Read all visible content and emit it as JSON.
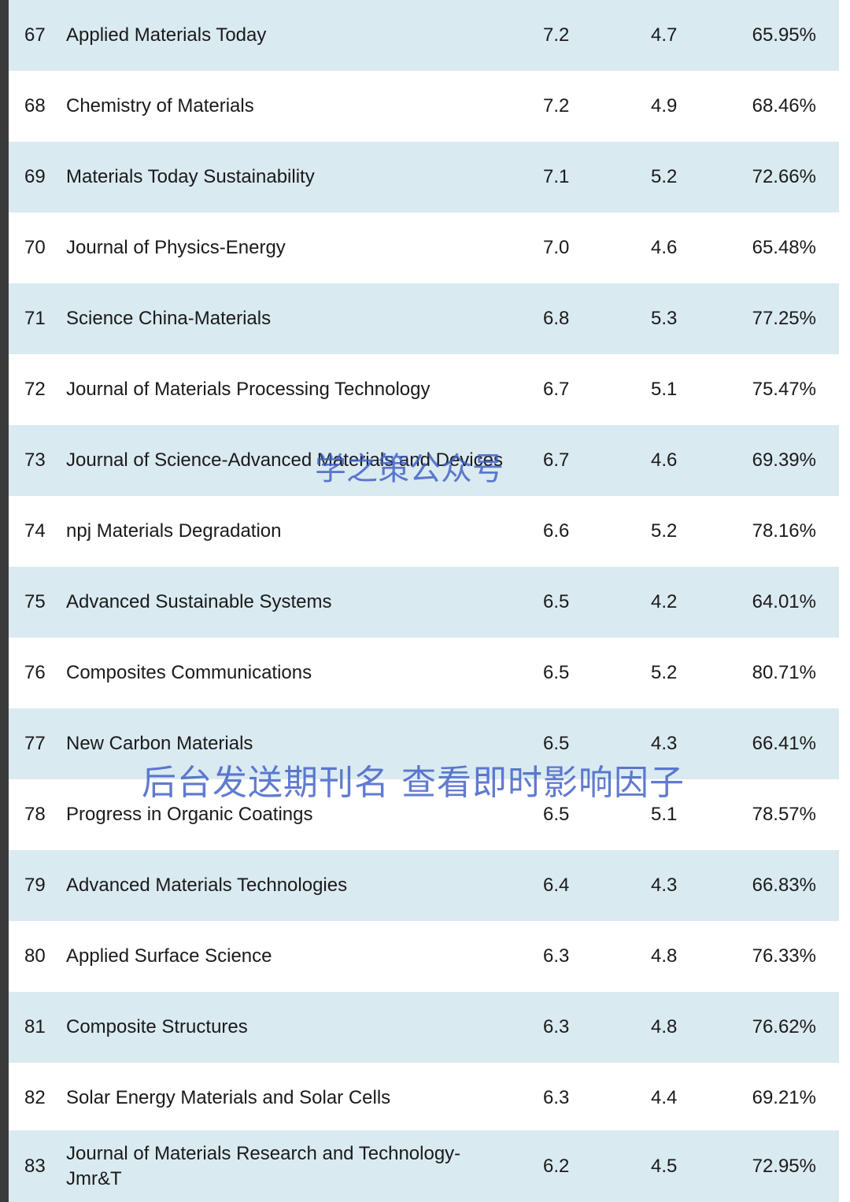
{
  "table": {
    "rows": [
      {
        "rank": "67",
        "title": "Applied Materials Today",
        "jif": "7.2",
        "cs": "4.7",
        "pct": "65.95%"
      },
      {
        "rank": "68",
        "title": "Chemistry of Materials",
        "jif": "7.2",
        "cs": "4.9",
        "pct": "68.46%"
      },
      {
        "rank": "69",
        "title": "Materials Today Sustainability",
        "jif": "7.1",
        "cs": "5.2",
        "pct": "72.66%"
      },
      {
        "rank": "70",
        "title": "Journal of Physics-Energy",
        "jif": "7.0",
        "cs": "4.6",
        "pct": "65.48%"
      },
      {
        "rank": "71",
        "title": "Science China-Materials",
        "jif": "6.8",
        "cs": "5.3",
        "pct": "77.25%"
      },
      {
        "rank": "72",
        "title": "Journal of Materials Processing Technology",
        "jif": "6.7",
        "cs": "5.1",
        "pct": "75.47%"
      },
      {
        "rank": "73",
        "title": "Journal of Science-Advanced Materials and Devices",
        "jif": "6.7",
        "cs": "4.6",
        "pct": "69.39%"
      },
      {
        "rank": "74",
        "title": "npj Materials Degradation",
        "jif": "6.6",
        "cs": "5.2",
        "pct": "78.16%"
      },
      {
        "rank": "75",
        "title": "Advanced Sustainable Systems",
        "jif": "6.5",
        "cs": "4.2",
        "pct": "64.01%"
      },
      {
        "rank": "76",
        "title": "Composites Communications",
        "jif": "6.5",
        "cs": "5.2",
        "pct": "80.71%"
      },
      {
        "rank": "77",
        "title": "New Carbon Materials",
        "jif": "6.5",
        "cs": "4.3",
        "pct": "66.41%"
      },
      {
        "rank": "78",
        "title": "Progress in Organic Coatings",
        "jif": "6.5",
        "cs": "5.1",
        "pct": "78.57%"
      },
      {
        "rank": "79",
        "title": "Advanced Materials Technologies",
        "jif": "6.4",
        "cs": "4.3",
        "pct": "66.83%"
      },
      {
        "rank": "80",
        "title": "Applied Surface Science",
        "jif": "6.3",
        "cs": "4.8",
        "pct": "76.33%"
      },
      {
        "rank": "81",
        "title": "Composite Structures",
        "jif": "6.3",
        "cs": "4.8",
        "pct": "76.62%"
      },
      {
        "rank": "82",
        "title": "Solar Energy Materials and Solar Cells",
        "jif": "6.3",
        "cs": "4.4",
        "pct": "69.21%"
      },
      {
        "rank": "83",
        "title": "Journal of Materials Research and Technology-Jmr&T",
        "jif": "6.2",
        "cs": "4.5",
        "pct": "72.95%"
      }
    ]
  },
  "watermarks": {
    "account": "学之策公众号",
    "instruction": "后台发送期刊名 查看即时影响因子"
  },
  "colors": {
    "row_shaded": "#daeaf1",
    "row_plain": "#ffffff",
    "watermark": "#3f5fc6"
  }
}
